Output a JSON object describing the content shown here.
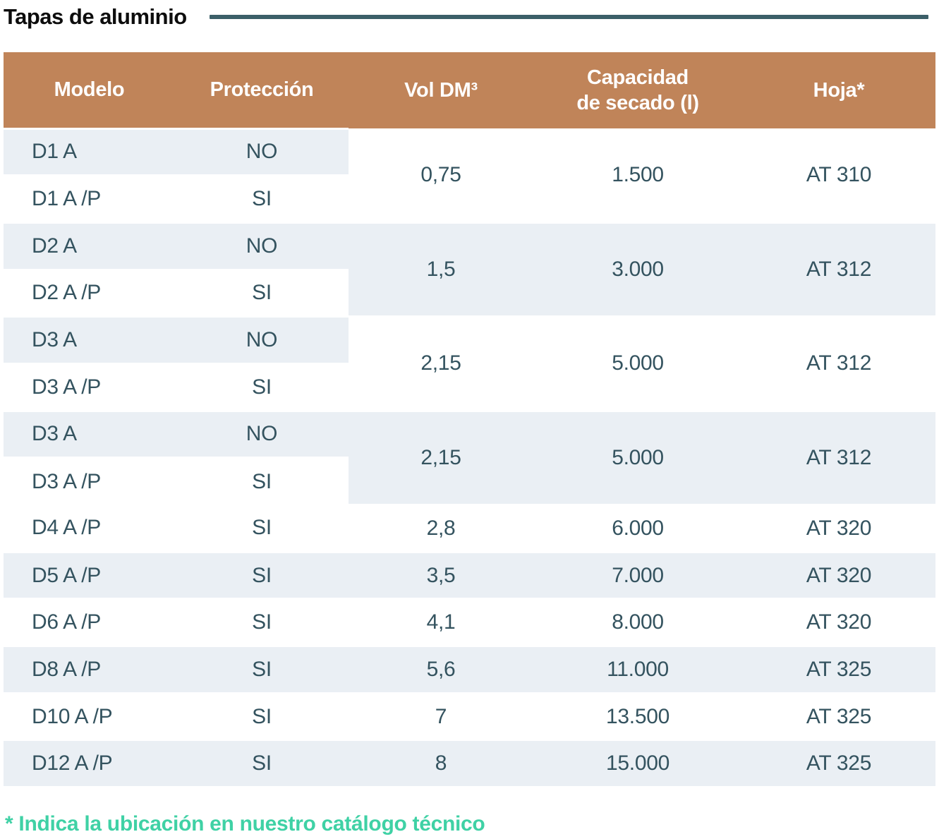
{
  "title": "Tapas de aluminio",
  "footnote": "* Indica la ubicación en nuestro catálogo técnico",
  "colors": {
    "header_bg": "#c08459",
    "header_text": "#ffffff",
    "row_alt_bg": "#eaeff4",
    "cell_text": "#34535f",
    "title_rule": "#3c5f68",
    "footnote_text": "#3fd1a5"
  },
  "table": {
    "columns": [
      {
        "id": "modelo",
        "label_lines": [
          "Modelo"
        ]
      },
      {
        "id": "proteccion",
        "label_lines": [
          "Protección"
        ]
      },
      {
        "id": "vol",
        "label_lines": [
          "Vol DM³"
        ]
      },
      {
        "id": "capacidad",
        "label_lines": [
          "Capacidad",
          "de secado (l)"
        ]
      },
      {
        "id": "hoja",
        "label_lines": [
          "Hoja*"
        ]
      }
    ],
    "groups": [
      {
        "merged_shade": "white",
        "vol": "0,75",
        "capacidad": "1.500",
        "hoja": "AT 310",
        "rows": [
          {
            "modelo": "D1 A",
            "proteccion": "NO",
            "shade": "light"
          },
          {
            "modelo": "D1 A /P",
            "proteccion": "SI",
            "shade": "white"
          }
        ]
      },
      {
        "merged_shade": "light",
        "vol": "1,5",
        "capacidad": "3.000",
        "hoja": "AT 312",
        "rows": [
          {
            "modelo": "D2 A",
            "proteccion": "NO",
            "shade": "light"
          },
          {
            "modelo": "D2 A /P",
            "proteccion": "SI",
            "shade": "white"
          }
        ]
      },
      {
        "merged_shade": "white",
        "vol": "2,15",
        "capacidad": "5.000",
        "hoja": "AT 312",
        "rows": [
          {
            "modelo": "D3 A",
            "proteccion": "NO",
            "shade": "light"
          },
          {
            "modelo": "D3 A /P",
            "proteccion": "SI",
            "shade": "white"
          }
        ]
      },
      {
        "merged_shade": "light",
        "vol": "2,15",
        "capacidad": "5.000",
        "hoja": "AT 312",
        "rows": [
          {
            "modelo": "D3 A",
            "proteccion": "NO",
            "shade": "light"
          },
          {
            "modelo": "D3 A /P",
            "proteccion": "SI",
            "shade": "white"
          }
        ]
      },
      {
        "merged_shade": "white",
        "vol": "2,8",
        "capacidad": "6.000",
        "hoja": "AT 320",
        "rows": [
          {
            "modelo": "D4 A /P",
            "proteccion": "SI",
            "shade": "white"
          }
        ]
      },
      {
        "merged_shade": "light",
        "vol": "3,5",
        "capacidad": "7.000",
        "hoja": "AT 320",
        "rows": [
          {
            "modelo": "D5 A /P",
            "proteccion": "SI",
            "shade": "light"
          }
        ]
      },
      {
        "merged_shade": "white",
        "vol": "4,1",
        "capacidad": "8.000",
        "hoja": "AT 320",
        "rows": [
          {
            "modelo": "D6 A /P",
            "proteccion": "SI",
            "shade": "white"
          }
        ]
      },
      {
        "merged_shade": "light",
        "vol": "5,6",
        "capacidad": "11.000",
        "hoja": "AT 325",
        "rows": [
          {
            "modelo": "D8 A /P",
            "proteccion": "SI",
            "shade": "light"
          }
        ]
      },
      {
        "merged_shade": "white",
        "vol": "7",
        "capacidad": "13.500",
        "hoja": "AT 325",
        "rows": [
          {
            "modelo": "D10 A /P",
            "proteccion": "SI",
            "shade": "white"
          }
        ]
      },
      {
        "merged_shade": "light",
        "vol": "8",
        "capacidad": "15.000",
        "hoja": "AT 325",
        "rows": [
          {
            "modelo": "D12 A /P",
            "proteccion": "SI",
            "shade": "light"
          }
        ]
      }
    ]
  }
}
